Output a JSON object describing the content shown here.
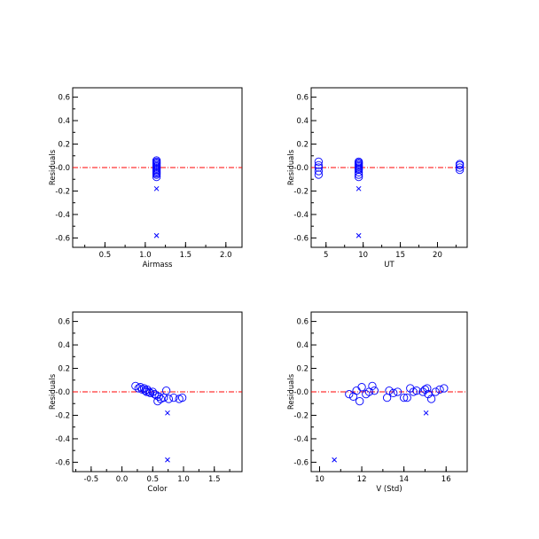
{
  "colors": {
    "frame": "#000000",
    "marker": "#0000ff",
    "zero_line": "#ff0000"
  },
  "chart_data": [
    {
      "type": "scatter",
      "xlabel": "Airmass",
      "ylabel": "Residuals",
      "xlim": [
        0.1,
        2.2
      ],
      "ylim": [
        -0.68,
        0.68
      ],
      "xticks": [
        0.5,
        1.0,
        1.5,
        2.0
      ],
      "xtick_labels": [
        "0.5",
        "1.0",
        "1.5",
        "2.0"
      ],
      "yticks": [
        -0.6,
        -0.4,
        -0.2,
        0.0,
        0.2,
        0.4,
        0.6
      ],
      "ytick_labels": [
        "-0.6",
        "-0.4",
        "-0.2",
        "-0.0",
        "0.2",
        "0.4",
        "0.6"
      ],
      "zero_line": 0.0,
      "circles": [
        [
          1.14,
          0.06
        ],
        [
          1.14,
          0.05
        ],
        [
          1.14,
          0.04
        ],
        [
          1.14,
          0.03
        ],
        [
          1.14,
          0.02
        ],
        [
          1.14,
          0.01
        ],
        [
          1.14,
          0.0
        ],
        [
          1.14,
          -0.01
        ],
        [
          1.14,
          -0.02
        ],
        [
          1.14,
          -0.03
        ],
        [
          1.14,
          -0.04
        ],
        [
          1.14,
          -0.05
        ],
        [
          1.14,
          -0.06
        ],
        [
          1.14,
          -0.08
        ]
      ],
      "crosses": [
        [
          1.14,
          -0.18
        ],
        [
          1.14,
          -0.58
        ]
      ]
    },
    {
      "type": "scatter",
      "xlabel": "UT",
      "ylabel": "Residuals",
      "xlim": [
        3.0,
        24.0
      ],
      "ylim": [
        -0.68,
        0.68
      ],
      "xticks": [
        5,
        10,
        15,
        20
      ],
      "xtick_labels": [
        "5",
        "10",
        "15",
        "20"
      ],
      "yticks": [
        -0.6,
        -0.4,
        -0.2,
        0.0,
        0.2,
        0.4,
        0.6
      ],
      "ytick_labels": [
        "-0.6",
        "-0.4",
        "-0.2",
        "-0.0",
        "0.2",
        "0.4",
        "0.6"
      ],
      "zero_line": 0.0,
      "circles": [
        [
          4.0,
          0.05
        ],
        [
          4.0,
          0.02
        ],
        [
          4.0,
          0.0
        ],
        [
          4.0,
          -0.03
        ],
        [
          4.0,
          -0.06
        ],
        [
          9.4,
          0.05
        ],
        [
          9.4,
          0.04
        ],
        [
          9.4,
          0.03
        ],
        [
          9.4,
          0.02
        ],
        [
          9.4,
          0.01
        ],
        [
          9.4,
          0.0
        ],
        [
          9.4,
          -0.01
        ],
        [
          9.4,
          -0.02
        ],
        [
          9.4,
          -0.04
        ],
        [
          9.4,
          -0.06
        ],
        [
          9.4,
          -0.08
        ],
        [
          23.0,
          0.03
        ],
        [
          23.0,
          0.02
        ],
        [
          23.0,
          0.0
        ],
        [
          23.0,
          -0.02
        ]
      ],
      "crosses": [
        [
          9.4,
          -0.18
        ],
        [
          9.4,
          -0.58
        ]
      ]
    },
    {
      "type": "scatter",
      "xlabel": "Color",
      "ylabel": "Residuals",
      "xlim": [
        -0.8,
        1.95
      ],
      "ylim": [
        -0.68,
        0.68
      ],
      "xticks": [
        -0.5,
        0.0,
        0.5,
        1.0,
        1.5
      ],
      "xtick_labels": [
        "-0.5",
        "0.0",
        "0.5",
        "1.0",
        "1.5"
      ],
      "yticks": [
        -0.6,
        -0.4,
        -0.2,
        0.0,
        0.2,
        0.4,
        0.6
      ],
      "ytick_labels": [
        "-0.6",
        "-0.4",
        "-0.2",
        "-0.0",
        "0.2",
        "0.4",
        "0.6"
      ],
      "zero_line": 0.0,
      "circles": [
        [
          0.22,
          0.05
        ],
        [
          0.27,
          0.03
        ],
        [
          0.3,
          0.04
        ],
        [
          0.33,
          0.02
        ],
        [
          0.36,
          0.03
        ],
        [
          0.38,
          0.01
        ],
        [
          0.41,
          0.02
        ],
        [
          0.44,
          0.0
        ],
        [
          0.46,
          -0.01
        ],
        [
          0.5,
          0.0
        ],
        [
          0.53,
          -0.02
        ],
        [
          0.56,
          -0.03
        ],
        [
          0.6,
          -0.04
        ],
        [
          0.63,
          -0.06
        ],
        [
          0.68,
          -0.05
        ],
        [
          0.72,
          0.01
        ],
        [
          0.76,
          -0.06
        ],
        [
          0.84,
          -0.05
        ],
        [
          0.93,
          -0.06
        ],
        [
          0.98,
          -0.05
        ],
        [
          0.58,
          -0.08
        ],
        [
          0.4,
          0.0
        ]
      ],
      "crosses": [
        [
          0.74,
          -0.18
        ],
        [
          0.74,
          -0.58
        ]
      ]
    },
    {
      "type": "scatter",
      "xlabel": "V (Std)",
      "ylabel": "Residuals",
      "xlim": [
        9.6,
        17.0
      ],
      "ylim": [
        -0.68,
        0.68
      ],
      "xticks": [
        10,
        12,
        14,
        16
      ],
      "xtick_labels": [
        "10",
        "12",
        "14",
        "16"
      ],
      "yticks": [
        -0.6,
        -0.4,
        -0.2,
        0.0,
        0.2,
        0.4,
        0.6
      ],
      "ytick_labels": [
        "-0.6",
        "-0.4",
        "-0.2",
        "-0.0",
        "0.2",
        "0.4",
        "0.6"
      ],
      "zero_line": 0.0,
      "circles": [
        [
          11.4,
          -0.02
        ],
        [
          11.6,
          -0.04
        ],
        [
          11.75,
          0.01
        ],
        [
          11.9,
          -0.08
        ],
        [
          12.0,
          0.04
        ],
        [
          12.2,
          -0.02
        ],
        [
          12.35,
          0.0
        ],
        [
          12.5,
          0.05
        ],
        [
          12.6,
          0.01
        ],
        [
          13.2,
          -0.05
        ],
        [
          13.3,
          0.01
        ],
        [
          13.5,
          -0.01
        ],
        [
          13.7,
          0.0
        ],
        [
          14.0,
          -0.05
        ],
        [
          14.15,
          -0.05
        ],
        [
          14.3,
          0.03
        ],
        [
          14.45,
          0.0
        ],
        [
          14.6,
          0.01
        ],
        [
          14.9,
          0.0
        ],
        [
          15.0,
          0.02
        ],
        [
          15.1,
          0.03
        ],
        [
          15.15,
          -0.02
        ],
        [
          15.3,
          -0.06
        ],
        [
          15.5,
          0.0
        ],
        [
          15.7,
          0.02
        ],
        [
          15.9,
          0.03
        ]
      ],
      "crosses": [
        [
          15.05,
          -0.18
        ],
        [
          10.7,
          -0.58
        ]
      ]
    }
  ]
}
